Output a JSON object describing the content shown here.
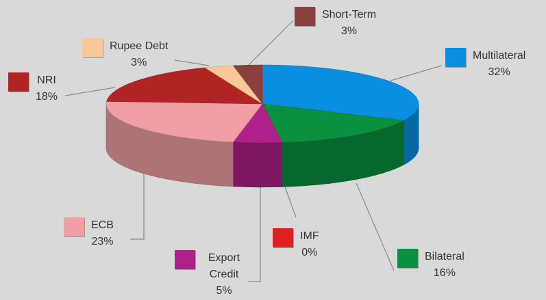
{
  "chart_data": {
    "type": "pie3d",
    "categories": [
      "Multilateral",
      "Bilateral",
      "IMF",
      "Export Credit",
      "ECB",
      "NRI",
      "Rupee Debt",
      "Short-Term"
    ],
    "values": [
      32,
      16,
      0,
      5,
      23,
      18,
      3,
      3
    ],
    "value_labels": [
      "32%",
      "16%",
      "0%",
      "5%",
      "23%",
      "18%",
      "3%",
      "3%"
    ],
    "colors": [
      "#0a8fe0",
      "#0a9040",
      "#e02020",
      "#b0208a",
      "#f0a0a4",
      "#b02424",
      "#f8c898",
      "#8b4040"
    ]
  }
}
